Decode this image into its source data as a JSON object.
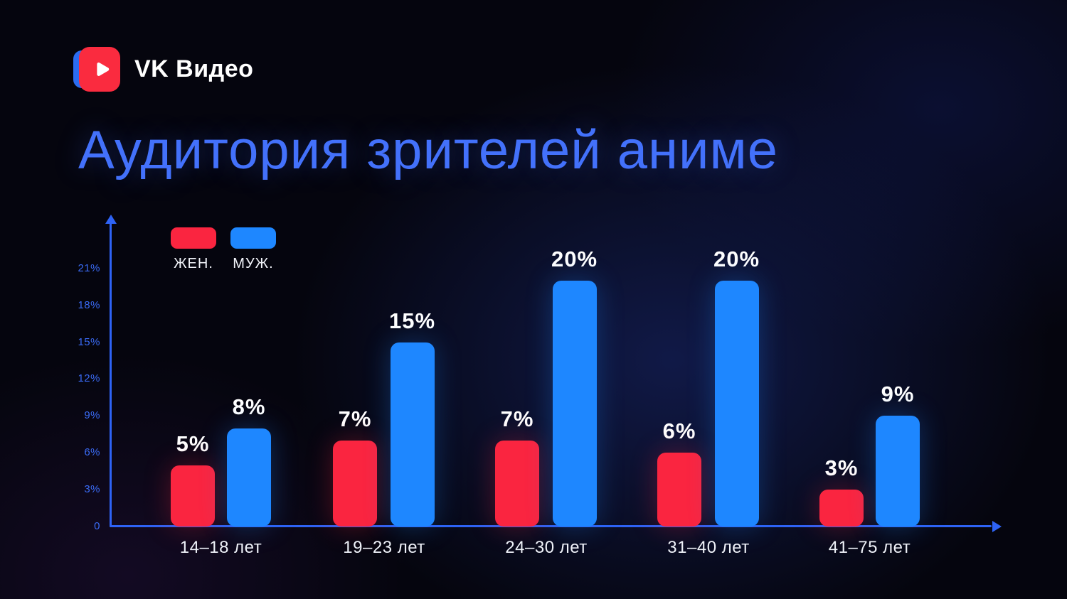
{
  "brand": {
    "name": "VK Видео"
  },
  "title": "Аудитория зрителей аниме",
  "chart_data": {
    "type": "bar",
    "title": "Аудитория зрителей аниме",
    "categories": [
      "14–18 лет",
      "19–23 лет",
      "24–30 лет",
      "31–40 лет",
      "41–75 лет"
    ],
    "series": [
      {
        "name": "ЖЕН.",
        "color": "#fa2540",
        "values": [
          5,
          7,
          7,
          6,
          3
        ]
      },
      {
        "name": "МУЖ.",
        "color": "#1e87ff",
        "values": [
          8,
          15,
          20,
          20,
          9
        ]
      }
    ],
    "value_suffix": "%",
    "yticks": [
      {
        "label": "21%",
        "value": 21
      },
      {
        "label": "18%",
        "value": 18
      },
      {
        "label": "15%",
        "value": 15
      },
      {
        "label": "12%",
        "value": 12
      },
      {
        "label": "9%",
        "value": 9
      },
      {
        "label": "6%",
        "value": 6
      },
      {
        "label": "3%",
        "value": 3
      },
      {
        "label": "0",
        "value": 0
      }
    ],
    "ylim": [
      0,
      22
    ],
    "xlabel": "",
    "ylabel": "",
    "grid": false,
    "legend_position": "top-left"
  }
}
